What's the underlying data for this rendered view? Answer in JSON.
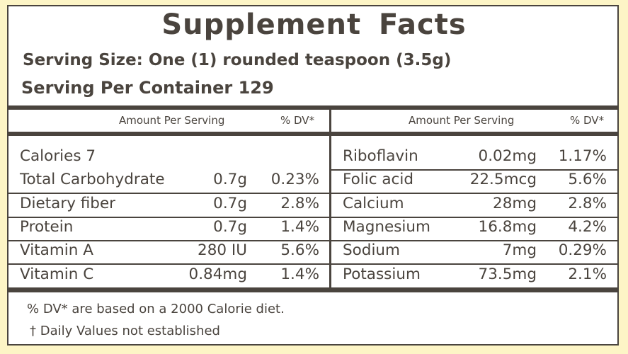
{
  "title": "Supplement Facts",
  "serving_size": "Serving Size: One (1) rounded teaspoon (3.5g)",
  "servings_per_container": "Serving Per Container 129",
  "header": {
    "amount": "Amount Per Serving",
    "dv": "% DV*"
  },
  "left_rows": [
    {
      "name": "Calories 7",
      "amount": "",
      "dv": ""
    },
    {
      "name": "Total Carbohydrate",
      "amount": "0.7g",
      "dv": "0.23%"
    },
    {
      "name": "Dietary fiber",
      "amount": "0.7g",
      "dv": "2.8%"
    },
    {
      "name": "Protein",
      "amount": "0.7g",
      "dv": "1.4%"
    },
    {
      "name": "Vitamin A",
      "amount": "280 IU",
      "dv": "5.6%"
    },
    {
      "name": "Vitamin C",
      "amount": "0.84mg",
      "dv": "1.4%"
    }
  ],
  "right_rows": [
    {
      "name": "Riboflavin",
      "amount": "0.02mg",
      "dv": "1.17%"
    },
    {
      "name": "Folic acid",
      "amount": "22.5mcg",
      "dv": "5.6%"
    },
    {
      "name": "Calcium",
      "amount": "28mg",
      "dv": "2.8%"
    },
    {
      "name": "Magnesium",
      "amount": "16.8mg",
      "dv": "4.2%"
    },
    {
      "name": "Sodium",
      "amount": "7mg",
      "dv": "0.29%"
    },
    {
      "name": "Potassium",
      "amount": "73.5mg",
      "dv": "2.1%"
    }
  ],
  "footnotes": [
    "% DV* are based on a 2000 Calorie diet.",
    "† Daily Values not established"
  ]
}
